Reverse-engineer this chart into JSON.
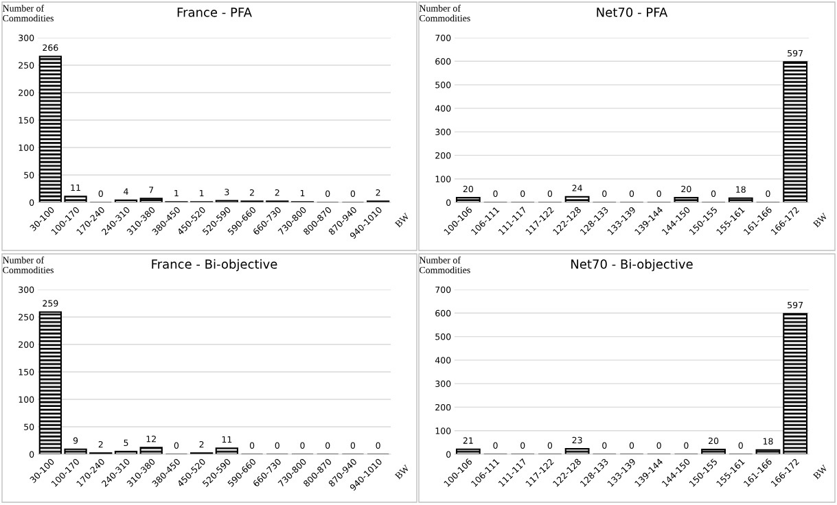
{
  "chart_data": [
    {
      "type": "bar",
      "title": "France - PFA",
      "ylabel": "Number of\nCommodities",
      "xlabel": "BW",
      "categories": [
        "30-100",
        "100-170",
        "170-240",
        "240-310",
        "310-380",
        "380-450",
        "450-520",
        "520-590",
        "590-660",
        "660-730",
        "730-800",
        "800-870",
        "870-940",
        "940-1010"
      ],
      "values": [
        266,
        11,
        0,
        4,
        7,
        1,
        1,
        3,
        2,
        2,
        1,
        0,
        0,
        2
      ],
      "color": "#000000",
      "ylim": [
        0,
        300
      ],
      "yticks": [
        0,
        50,
        100,
        150,
        200,
        250,
        300
      ],
      "grid": "y",
      "data_labels": true
    },
    {
      "type": "bar",
      "title": "Net70 - PFA",
      "ylabel": "Number of\nCommodities",
      "xlabel": "BW",
      "categories": [
        "100-106",
        "106-111",
        "111-117",
        "117-122",
        "122-128",
        "128-133",
        "133-139",
        "139-144",
        "144-150",
        "150-155",
        "155-161",
        "161-166",
        "166-172"
      ],
      "values": [
        20,
        0,
        0,
        0,
        24,
        0,
        0,
        0,
        20,
        0,
        18,
        0,
        597
      ],
      "color": "#000000",
      "ylim": [
        0,
        700
      ],
      "yticks": [
        0,
        100,
        200,
        300,
        400,
        500,
        600,
        700
      ],
      "grid": "y",
      "data_labels": true
    },
    {
      "type": "bar",
      "title": "France - Bi-objective",
      "ylabel": "Number of\nCommodities",
      "xlabel": "BW",
      "categories": [
        "30-100",
        "100-170",
        "170-240",
        "240-310",
        "310-380",
        "380-450",
        "450-520",
        "520-590",
        "590-660",
        "660-730",
        "730-800",
        "800-870",
        "870-940",
        "940-1010"
      ],
      "values": [
        259,
        9,
        2,
        5,
        12,
        0,
        2,
        11,
        0,
        0,
        0,
        0,
        0,
        0
      ],
      "color": "#000000",
      "ylim": [
        0,
        300
      ],
      "yticks": [
        0,
        50,
        100,
        150,
        200,
        250,
        300
      ],
      "grid": "y",
      "data_labels": true
    },
    {
      "type": "bar",
      "title": "Net70 - Bi-objective",
      "ylabel": "Number of\nCommodities",
      "xlabel": "BW",
      "categories": [
        "100-106",
        "106-111",
        "111-117",
        "117-122",
        "122-128",
        "128-133",
        "133-139",
        "139-144",
        "144-150",
        "150-155",
        "155-161",
        "161-166",
        "166-172"
      ],
      "values": [
        21,
        0,
        0,
        0,
        23,
        0,
        0,
        0,
        0,
        20,
        0,
        18,
        597
      ],
      "color": "#000000",
      "ylim": [
        0,
        700
      ],
      "yticks": [
        0,
        100,
        200,
        300,
        400,
        500,
        600,
        700
      ],
      "grid": "y",
      "data_labels": true
    }
  ]
}
